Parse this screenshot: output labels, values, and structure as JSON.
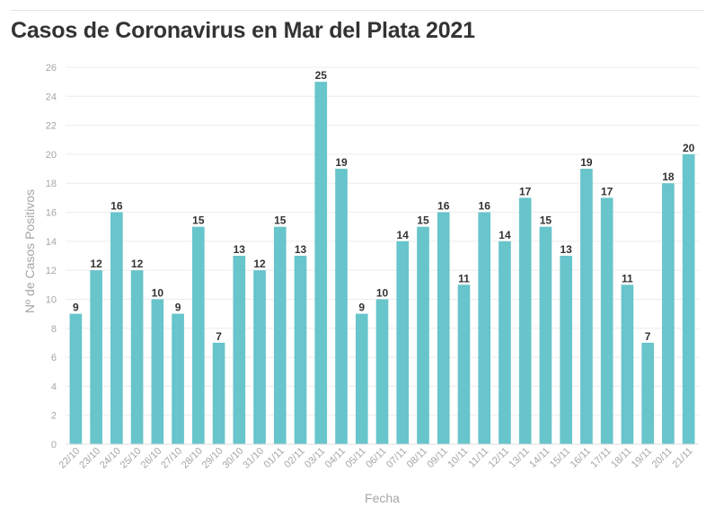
{
  "chart_data": {
    "type": "bar",
    "title": "Casos de Coronavirus en Mar del Plata 2021",
    "xlabel": "Fecha",
    "ylabel": "Nº de Casos Positivos",
    "ylim": [
      0,
      26
    ],
    "yticks": [
      0,
      2,
      4,
      6,
      8,
      10,
      12,
      14,
      16,
      18,
      20,
      22,
      24,
      26
    ],
    "grid": true,
    "bar_color": "#67c5cb",
    "categories": [
      "22/10",
      "23/10",
      "24/10",
      "25/10",
      "26/10",
      "27/10",
      "28/10",
      "29/10",
      "30/10",
      "31/10",
      "01/11",
      "02/11",
      "03/11",
      "04/11",
      "05/11",
      "06/11",
      "07/11",
      "08/11",
      "09/11",
      "10/11",
      "11/11",
      "12/11",
      "13/11",
      "14/11",
      "15/11",
      "16/11",
      "17/11",
      "18/11",
      "19/11",
      "20/11",
      "21/11"
    ],
    "values": [
      9,
      12,
      16,
      12,
      10,
      9,
      15,
      7,
      13,
      12,
      15,
      13,
      25,
      19,
      9,
      10,
      14,
      15,
      16,
      11,
      16,
      14,
      17,
      15,
      13,
      19,
      17,
      11,
      7,
      18,
      20
    ]
  }
}
